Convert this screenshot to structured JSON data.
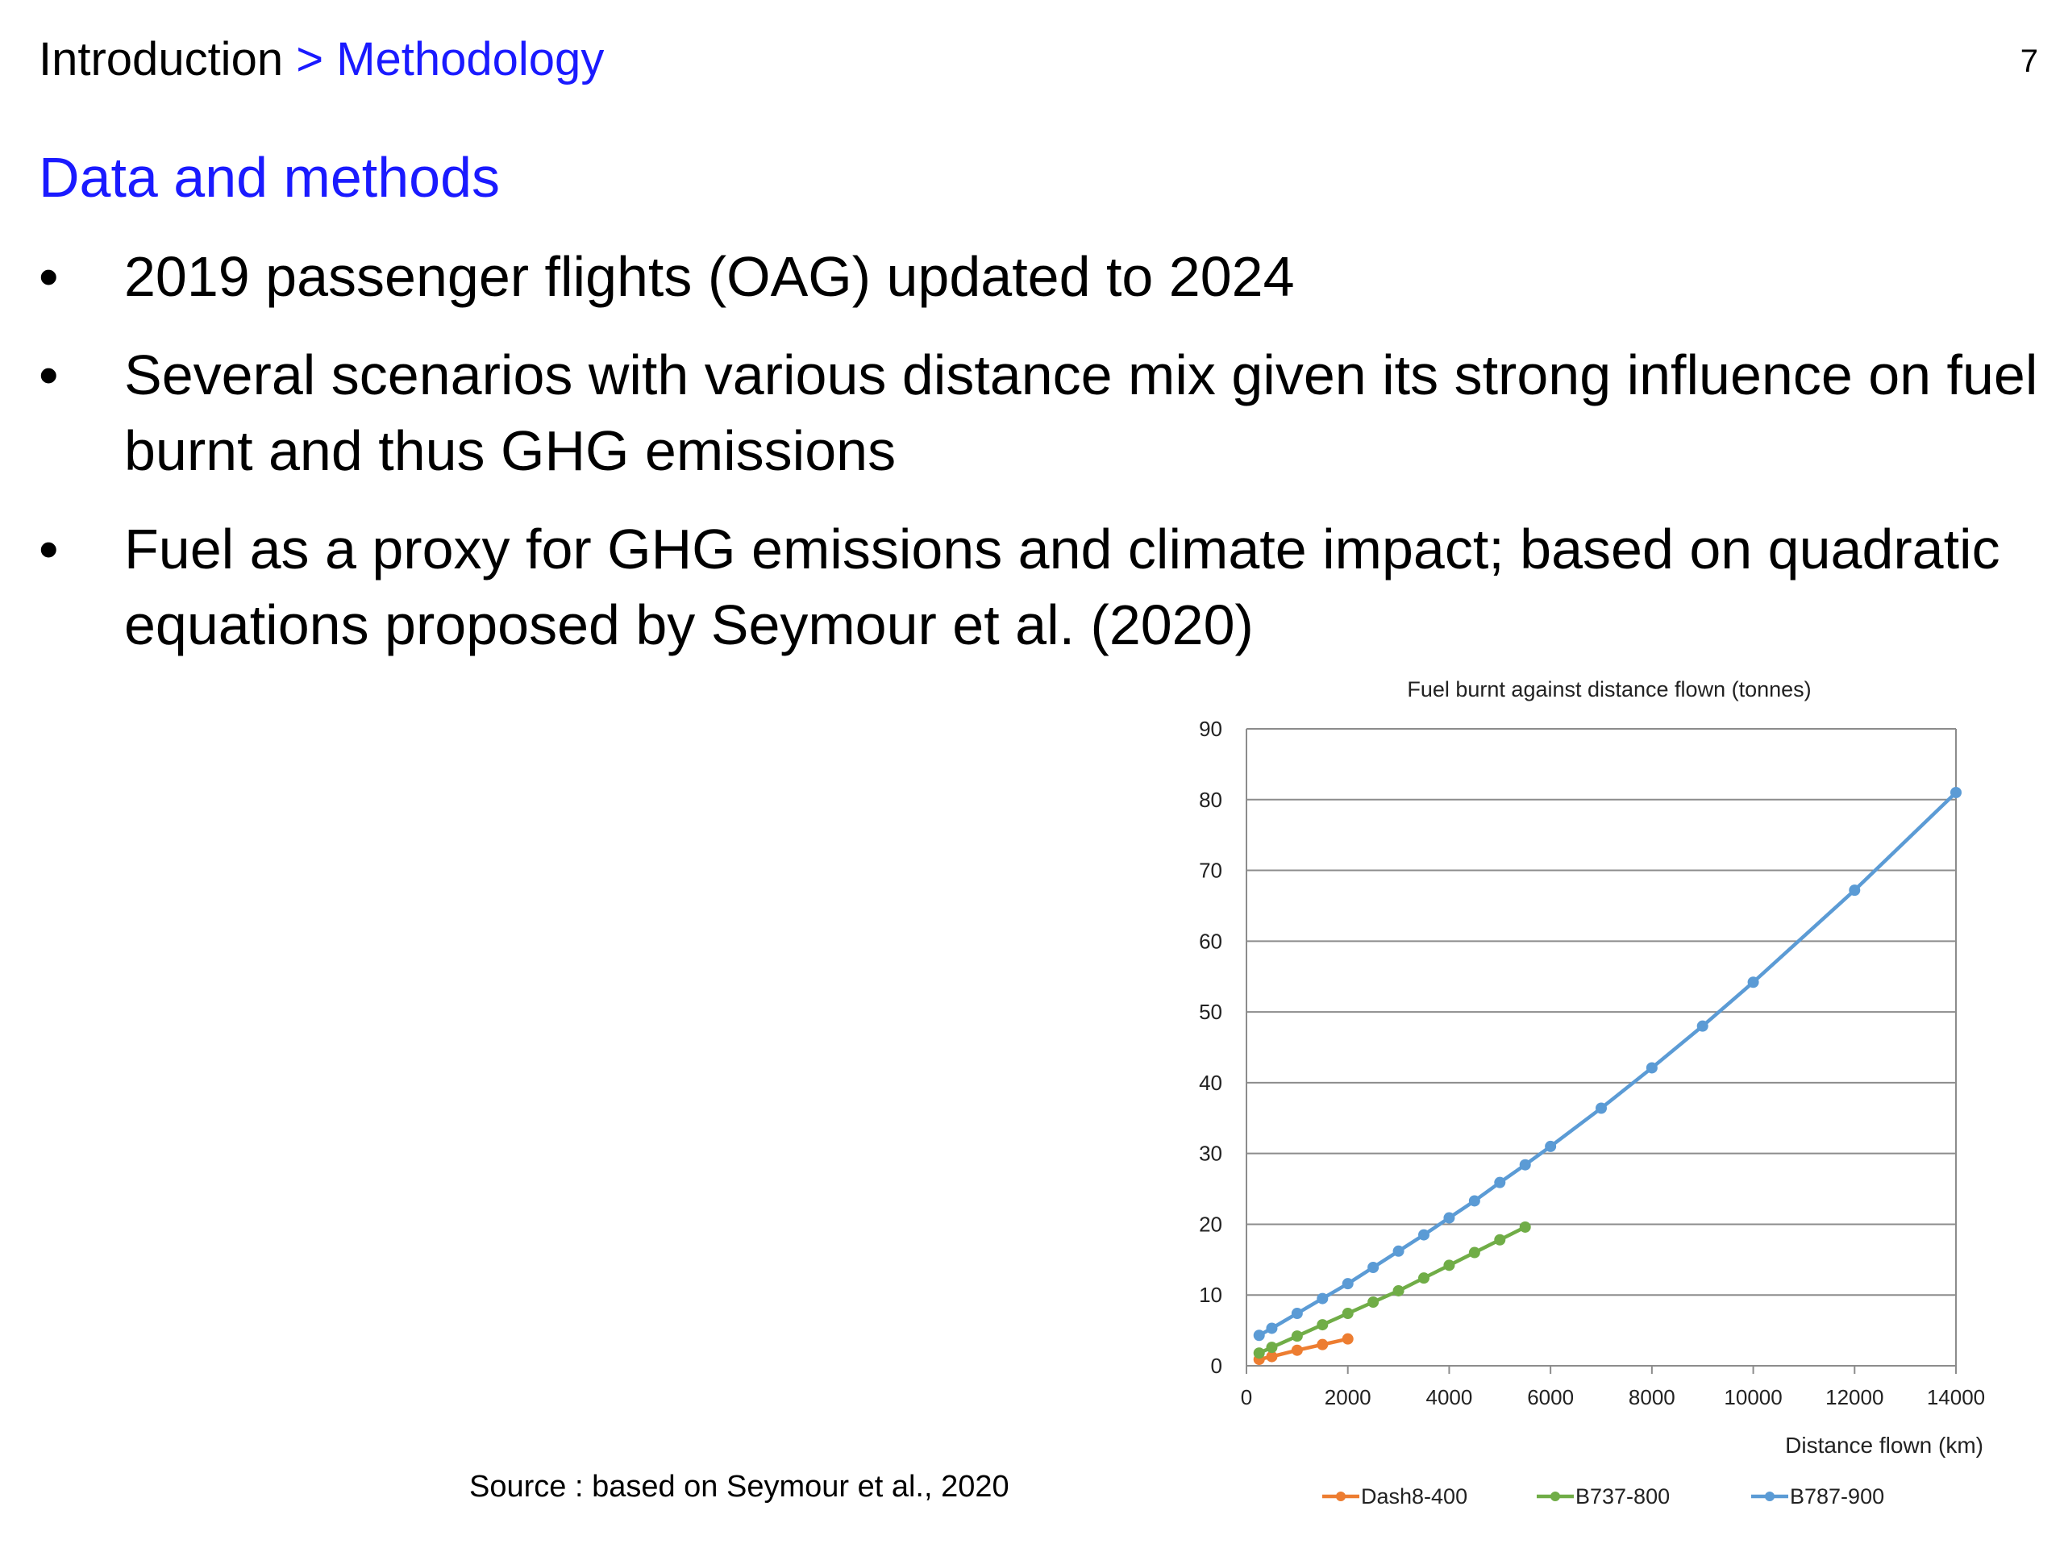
{
  "header": {
    "breadcrumb": [
      {
        "label": "Introduction"
      },
      {
        "label": "> Methodology"
      }
    ],
    "page_number": "7"
  },
  "title": "Data and methods",
  "bullets": [
    {
      "text": "2019 passenger flights (OAG) updated to 2024"
    },
    {
      "text": "Several scenarios with various distance mix given its strong influence on fuel burnt and thus GHG emissions"
    },
    {
      "text": "Fuel as a proxy for GHG emissions and climate impact; based on quadratic equations proposed by Seymour et al. (2020)"
    }
  ],
  "bullet_symbol": "•",
  "source": "Source : based on Seymour et al., 2020",
  "chart_data": {
    "type": "line",
    "title": "Fuel burnt against distance flown (tonnes)",
    "xlabel": "Distance flown (km)",
    "ylabel": "",
    "xlim": [
      0,
      14000
    ],
    "ylim": [
      0,
      90
    ],
    "xticks": [
      0,
      2000,
      4000,
      6000,
      8000,
      10000,
      12000,
      14000
    ],
    "yticks": [
      0,
      10,
      20,
      30,
      40,
      50,
      60,
      70,
      80,
      90
    ],
    "grid": "horizontal",
    "legend_position": "bottom",
    "series": [
      {
        "name": "Dash8-400",
        "color": "#ed7d31",
        "x": [
          250,
          500,
          1000,
          1500,
          2000
        ],
        "y": [
          0.9,
          1.3,
          2.2,
          3.0,
          3.8
        ]
      },
      {
        "name": "B737-800",
        "color": "#70ad47",
        "x": [
          250,
          500,
          1000,
          1500,
          2000,
          2500,
          3000,
          3500,
          4000,
          4500,
          5000,
          5500
        ],
        "y": [
          1.8,
          2.6,
          4.2,
          5.8,
          7.4,
          9.0,
          10.6,
          12.4,
          14.2,
          16.0,
          17.8,
          19.6
        ]
      },
      {
        "name": "B787-900",
        "color": "#5b9bd5",
        "x": [
          250,
          500,
          1000,
          1500,
          2000,
          2500,
          3000,
          3500,
          4000,
          4500,
          5000,
          5500,
          6000,
          7000,
          8000,
          9000,
          10000,
          12000,
          14000
        ],
        "y": [
          4.3,
          5.3,
          7.4,
          9.5,
          11.6,
          13.9,
          16.2,
          18.5,
          20.9,
          23.3,
          25.9,
          28.4,
          31.0,
          36.4,
          42.1,
          48.0,
          54.2,
          67.2,
          81.0
        ]
      }
    ]
  }
}
